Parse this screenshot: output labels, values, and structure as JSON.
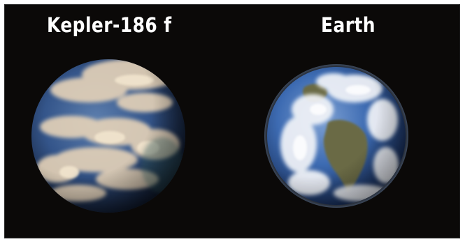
{
  "labels": {
    "kepler": "Kepler-186 f",
    "earth": "Earth"
  },
  "colors": {
    "background": "#0b0908",
    "text": "#ffffff",
    "kepler_ocean": "#2b4a7a",
    "kepler_clouds": "#e6d3b8",
    "earth_ocean": "#2c5aa0",
    "earth_land": "#6b6a45",
    "earth_clouds": "#f2f4f8"
  }
}
